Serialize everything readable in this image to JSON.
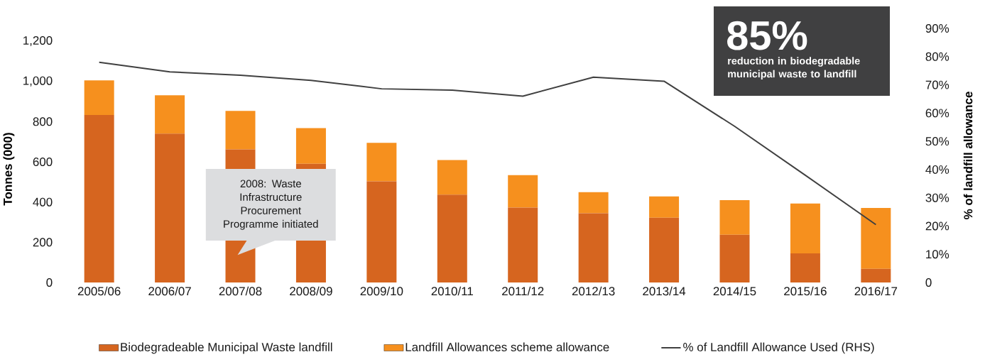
{
  "chart_data": {
    "type": "bar",
    "stacked": true,
    "categories": [
      "2005/06",
      "2006/07",
      "2007/08",
      "2008/09",
      "2009/10",
      "2010/11",
      "2011/12",
      "2012/13",
      "2013/14",
      "2014/15",
      "2015/16",
      "2016/17"
    ],
    "series": [
      {
        "name": "Biodegradeable Municipal Waste landfill",
        "color": "#d6651f",
        "values": [
          833,
          740,
          662,
          590,
          503,
          437,
          372,
          344,
          322,
          237,
          145,
          68
        ]
      },
      {
        "name": "Landfill Allowances scheme allowance",
        "color": "#f6901e",
        "values": [
          172,
          191,
          191,
          178,
          191,
          172,
          162,
          105,
          106,
          172,
          248,
          303
        ]
      },
      {
        "name": "% of Landfill Allowance Used (RHS)",
        "type": "line",
        "axis": "y2",
        "color": "#404040",
        "values": [
          78,
          74.6,
          73.4,
          71.6,
          68.6,
          68.1,
          66,
          72.7,
          71.3,
          55.3,
          38,
          20.5
        ]
      }
    ],
    "ylim": [
      0,
      1200
    ],
    "yticks": [
      {
        "value": 0,
        "label": "0"
      },
      {
        "value": 200,
        "label": "200"
      },
      {
        "value": 400,
        "label": "400"
      },
      {
        "value": 600,
        "label": "600"
      },
      {
        "value": 800,
        "label": "800"
      },
      {
        "value": 1000,
        "label": "1,000"
      },
      {
        "value": 1200,
        "label": "1,200"
      }
    ],
    "y2lim": [
      0,
      90
    ],
    "y2ticks": [
      {
        "value": 0,
        "label": "0"
      },
      {
        "value": 10,
        "label": "10%"
      },
      {
        "value": 20,
        "label": "20%"
      },
      {
        "value": 30,
        "label": "30%"
      },
      {
        "value": 40,
        "label": "40%"
      },
      {
        "value": 50,
        "label": "50%"
      },
      {
        "value": 60,
        "label": "60%"
      },
      {
        "value": 70,
        "label": "70%"
      },
      {
        "value": 80,
        "label": "80%"
      },
      {
        "value": 90,
        "label": "90%"
      }
    ],
    "ylabel": "Tonnes (000)",
    "y2label": "% of landfill allowance",
    "legend": "bottom",
    "annotations": [
      "2008: Waste Infrastructure Procurement Programme initiated",
      "85%",
      "reduction in biodegradable municipal waste to landfill"
    ]
  }
}
